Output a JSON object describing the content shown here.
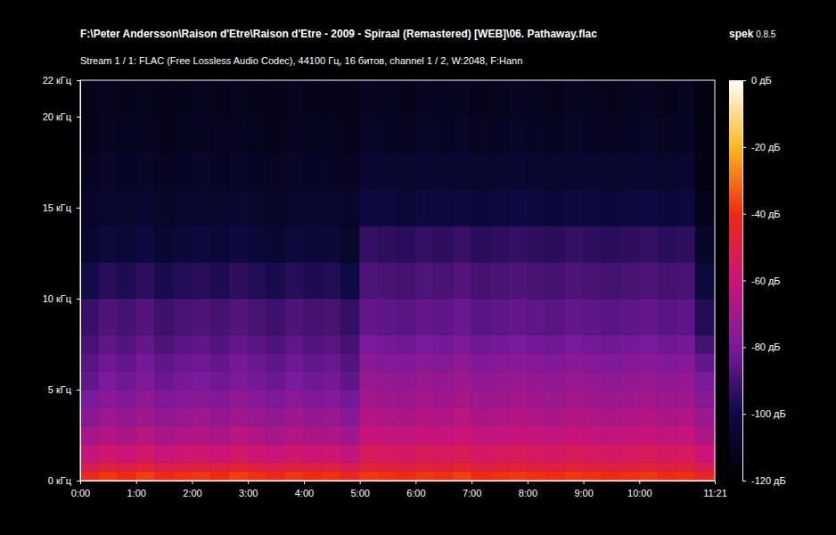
{
  "chart_data": {
    "type": "heatmap",
    "title": "F:\\Peter Andersson\\Raison d'Etre\\Raison d'Etre - 2009 - Spiraal (Remastered) [WEB]\\06. Pathaway.flac",
    "subtitle": "Stream 1 / 1: FLAC (Free Lossless Audio Codec), 44100 Гц, 16 битов, channel 1 / 2, W:2048, F:Hann",
    "software": "spek",
    "version": "0.8.5",
    "xlim": [
      0,
      681
    ],
    "xticks": [
      {
        "value": 0,
        "label": "0:00"
      },
      {
        "value": 60,
        "label": "1:00"
      },
      {
        "value": 120,
        "label": "2:00"
      },
      {
        "value": 180,
        "label": "3:00"
      },
      {
        "value": 240,
        "label": "4:00"
      },
      {
        "value": 300,
        "label": "5:00"
      },
      {
        "value": 360,
        "label": "6:00"
      },
      {
        "value": 420,
        "label": "7:00"
      },
      {
        "value": 480,
        "label": "8:00"
      },
      {
        "value": 540,
        "label": "9:00"
      },
      {
        "value": 600,
        "label": "10:00"
      },
      {
        "value": 681,
        "label": "11:21"
      }
    ],
    "ylim": [
      0,
      22
    ],
    "yticks": [
      {
        "value": 0,
        "label": "0 кГц"
      },
      {
        "value": 5,
        "label": "5 кГц"
      },
      {
        "value": 10,
        "label": "10 кГц"
      },
      {
        "value": 15,
        "label": "15 кГц"
      },
      {
        "value": 20,
        "label": "20 кГц"
      },
      {
        "value": 22,
        "label": "22 кГц"
      }
    ],
    "color_range": [
      -120,
      0
    ],
    "color_ticks": [
      {
        "value": 0,
        "label": "0 дБ"
      },
      {
        "value": -20,
        "label": "-20 дБ"
      },
      {
        "value": -40,
        "label": "-40 дБ"
      },
      {
        "value": -60,
        "label": "-60 дБ"
      },
      {
        "value": -80,
        "label": "-80 дБ"
      },
      {
        "value": -100,
        "label": "-100 дБ"
      },
      {
        "value": -120,
        "label": "-120 дБ"
      }
    ],
    "x_edges": [
      0,
      20,
      40,
      60,
      80,
      100,
      120,
      140,
      160,
      180,
      200,
      220,
      240,
      260,
      280,
      300,
      320,
      340,
      360,
      380,
      400,
      420,
      440,
      460,
      480,
      500,
      520,
      540,
      560,
      580,
      600,
      620,
      640,
      660,
      681
    ],
    "y_edges": [
      0,
      0.5,
      1,
      2,
      3,
      4,
      5,
      6,
      7,
      8,
      10,
      12,
      14,
      16,
      18,
      20,
      22
    ],
    "cells": [
      [
        -42,
        -38,
        -40,
        -37,
        -41,
        -39,
        -38,
        -40,
        -37,
        -39,
        -41,
        -38,
        -40,
        -39,
        -43,
        -38,
        -39,
        -40,
        -38,
        -39,
        -37,
        -40,
        -39,
        -38,
        -39,
        -40,
        -38,
        -39,
        -40,
        -39,
        -38,
        -40,
        -39,
        -44
      ],
      [
        -52,
        -48,
        -50,
        -47,
        -51,
        -49,
        -48,
        -50,
        -47,
        -49,
        -51,
        -48,
        -50,
        -49,
        -53,
        -47,
        -48,
        -49,
        -47,
        -48,
        -46,
        -49,
        -48,
        -47,
        -48,
        -49,
        -47,
        -48,
        -49,
        -48,
        -47,
        -49,
        -48,
        -53
      ],
      [
        -62,
        -58,
        -60,
        -57,
        -61,
        -59,
        -58,
        -60,
        -57,
        -59,
        -61,
        -58,
        -60,
        -59,
        -63,
        -54,
        -55,
        -56,
        -54,
        -55,
        -53,
        -56,
        -55,
        -54,
        -55,
        -56,
        -54,
        -55,
        -56,
        -55,
        -54,
        -56,
        -55,
        -60
      ],
      [
        -70,
        -66,
        -68,
        -65,
        -69,
        -67,
        -66,
        -68,
        -65,
        -67,
        -69,
        -66,
        -68,
        -67,
        -71,
        -61,
        -62,
        -63,
        -61,
        -62,
        -60,
        -63,
        -62,
        -61,
        -62,
        -63,
        -61,
        -62,
        -63,
        -62,
        -61,
        -63,
        -62,
        -67
      ],
      [
        -76,
        -72,
        -74,
        -71,
        -75,
        -73,
        -72,
        -74,
        -71,
        -73,
        -75,
        -72,
        -74,
        -73,
        -77,
        -66,
        -67,
        -68,
        -66,
        -67,
        -65,
        -68,
        -67,
        -66,
        -67,
        -68,
        -66,
        -67,
        -68,
        -67,
        -66,
        -68,
        -67,
        -72
      ],
      [
        -80,
        -76,
        -78,
        -75,
        -79,
        -77,
        -76,
        -78,
        -75,
        -77,
        -79,
        -76,
        -78,
        -77,
        -81,
        -70,
        -71,
        -72,
        -70,
        -71,
        -69,
        -72,
        -71,
        -70,
        -71,
        -72,
        -70,
        -71,
        -72,
        -71,
        -70,
        -72,
        -71,
        -76
      ],
      [
        -84,
        -80,
        -82,
        -79,
        -83,
        -81,
        -80,
        -82,
        -79,
        -81,
        -83,
        -80,
        -82,
        -81,
        -85,
        -73,
        -74,
        -75,
        -73,
        -74,
        -72,
        -75,
        -74,
        -73,
        -74,
        -75,
        -73,
        -74,
        -75,
        -74,
        -73,
        -75,
        -74,
        -80
      ],
      [
        -86,
        -82,
        -84,
        -81,
        -85,
        -83,
        -82,
        -84,
        -81,
        -83,
        -85,
        -82,
        -84,
        -83,
        -87,
        -76,
        -77,
        -78,
        -76,
        -77,
        -75,
        -78,
        -77,
        -76,
        -77,
        -78,
        -76,
        -77,
        -78,
        -77,
        -76,
        -78,
        -77,
        -84
      ],
      [
        -89,
        -85,
        -87,
        -84,
        -88,
        -86,
        -85,
        -87,
        -84,
        -86,
        -88,
        -85,
        -87,
        -86,
        -90,
        -80,
        -81,
        -82,
        -80,
        -81,
        -79,
        -82,
        -81,
        -80,
        -81,
        -82,
        -80,
        -81,
        -82,
        -81,
        -80,
        -82,
        -81,
        -90
      ],
      [
        -92,
        -88,
        -90,
        -87,
        -91,
        -89,
        -88,
        -90,
        -87,
        -89,
        -91,
        -88,
        -90,
        -89,
        -93,
        -84,
        -85,
        -86,
        -84,
        -85,
        -83,
        -86,
        -85,
        -84,
        -85,
        -86,
        -84,
        -85,
        -86,
        -85,
        -84,
        -86,
        -85,
        -96
      ],
      [
        -99,
        -95,
        -97,
        -94,
        -98,
        -96,
        -95,
        -97,
        -94,
        -96,
        -98,
        -95,
        -97,
        -96,
        -100,
        -88,
        -89,
        -90,
        -88,
        -89,
        -87,
        -90,
        -89,
        -88,
        -89,
        -90,
        -88,
        -89,
        -90,
        -89,
        -88,
        -90,
        -89,
        -102
      ],
      [
        -106,
        -102,
        -104,
        -101,
        -105,
        -103,
        -102,
        -104,
        -101,
        -103,
        -105,
        -102,
        -104,
        -103,
        -107,
        -93,
        -94,
        -95,
        -93,
        -94,
        -92,
        -95,
        -94,
        -93,
        -94,
        -95,
        -93,
        -94,
        -95,
        -94,
        -93,
        -95,
        -94,
        -108
      ],
      [
        -108,
        -106,
        -107,
        -105,
        -108,
        -107,
        -106,
        -107,
        -105,
        -107,
        -108,
        -106,
        -107,
        -106,
        -108,
        -101,
        -102,
        -103,
        -101,
        -102,
        -101,
        -103,
        -102,
        -101,
        -102,
        -103,
        -101,
        -102,
        -103,
        -102,
        -101,
        -103,
        -102,
        -112
      ],
      [
        -110,
        -108,
        -109,
        -108,
        -110,
        -109,
        -108,
        -109,
        -108,
        -109,
        -110,
        -108,
        -109,
        -109,
        -110,
        -105,
        -106,
        -107,
        -105,
        -106,
        -105,
        -107,
        -106,
        -105,
        -106,
        -107,
        -105,
        -106,
        -107,
        -106,
        -105,
        -107,
        -106,
        -114
      ],
      [
        -112,
        -110,
        -111,
        -110,
        -112,
        -111,
        -110,
        -111,
        -110,
        -111,
        -112,
        -110,
        -111,
        -111,
        -112,
        -108,
        -109,
        -110,
        -108,
        -109,
        -108,
        -110,
        -109,
        -108,
        -109,
        -110,
        -108,
        -109,
        -110,
        -109,
        -108,
        -110,
        -109,
        -115
      ],
      [
        -113,
        -111,
        -112,
        -111,
        -113,
        -112,
        -111,
        -112,
        -111,
        -112,
        -113,
        -111,
        -112,
        -112,
        -113,
        -110,
        -111,
        -112,
        -110,
        -111,
        -110,
        -112,
        -111,
        -110,
        -111,
        -112,
        -110,
        -111,
        -112,
        -111,
        -110,
        -112,
        -111,
        -116
      ]
    ]
  }
}
